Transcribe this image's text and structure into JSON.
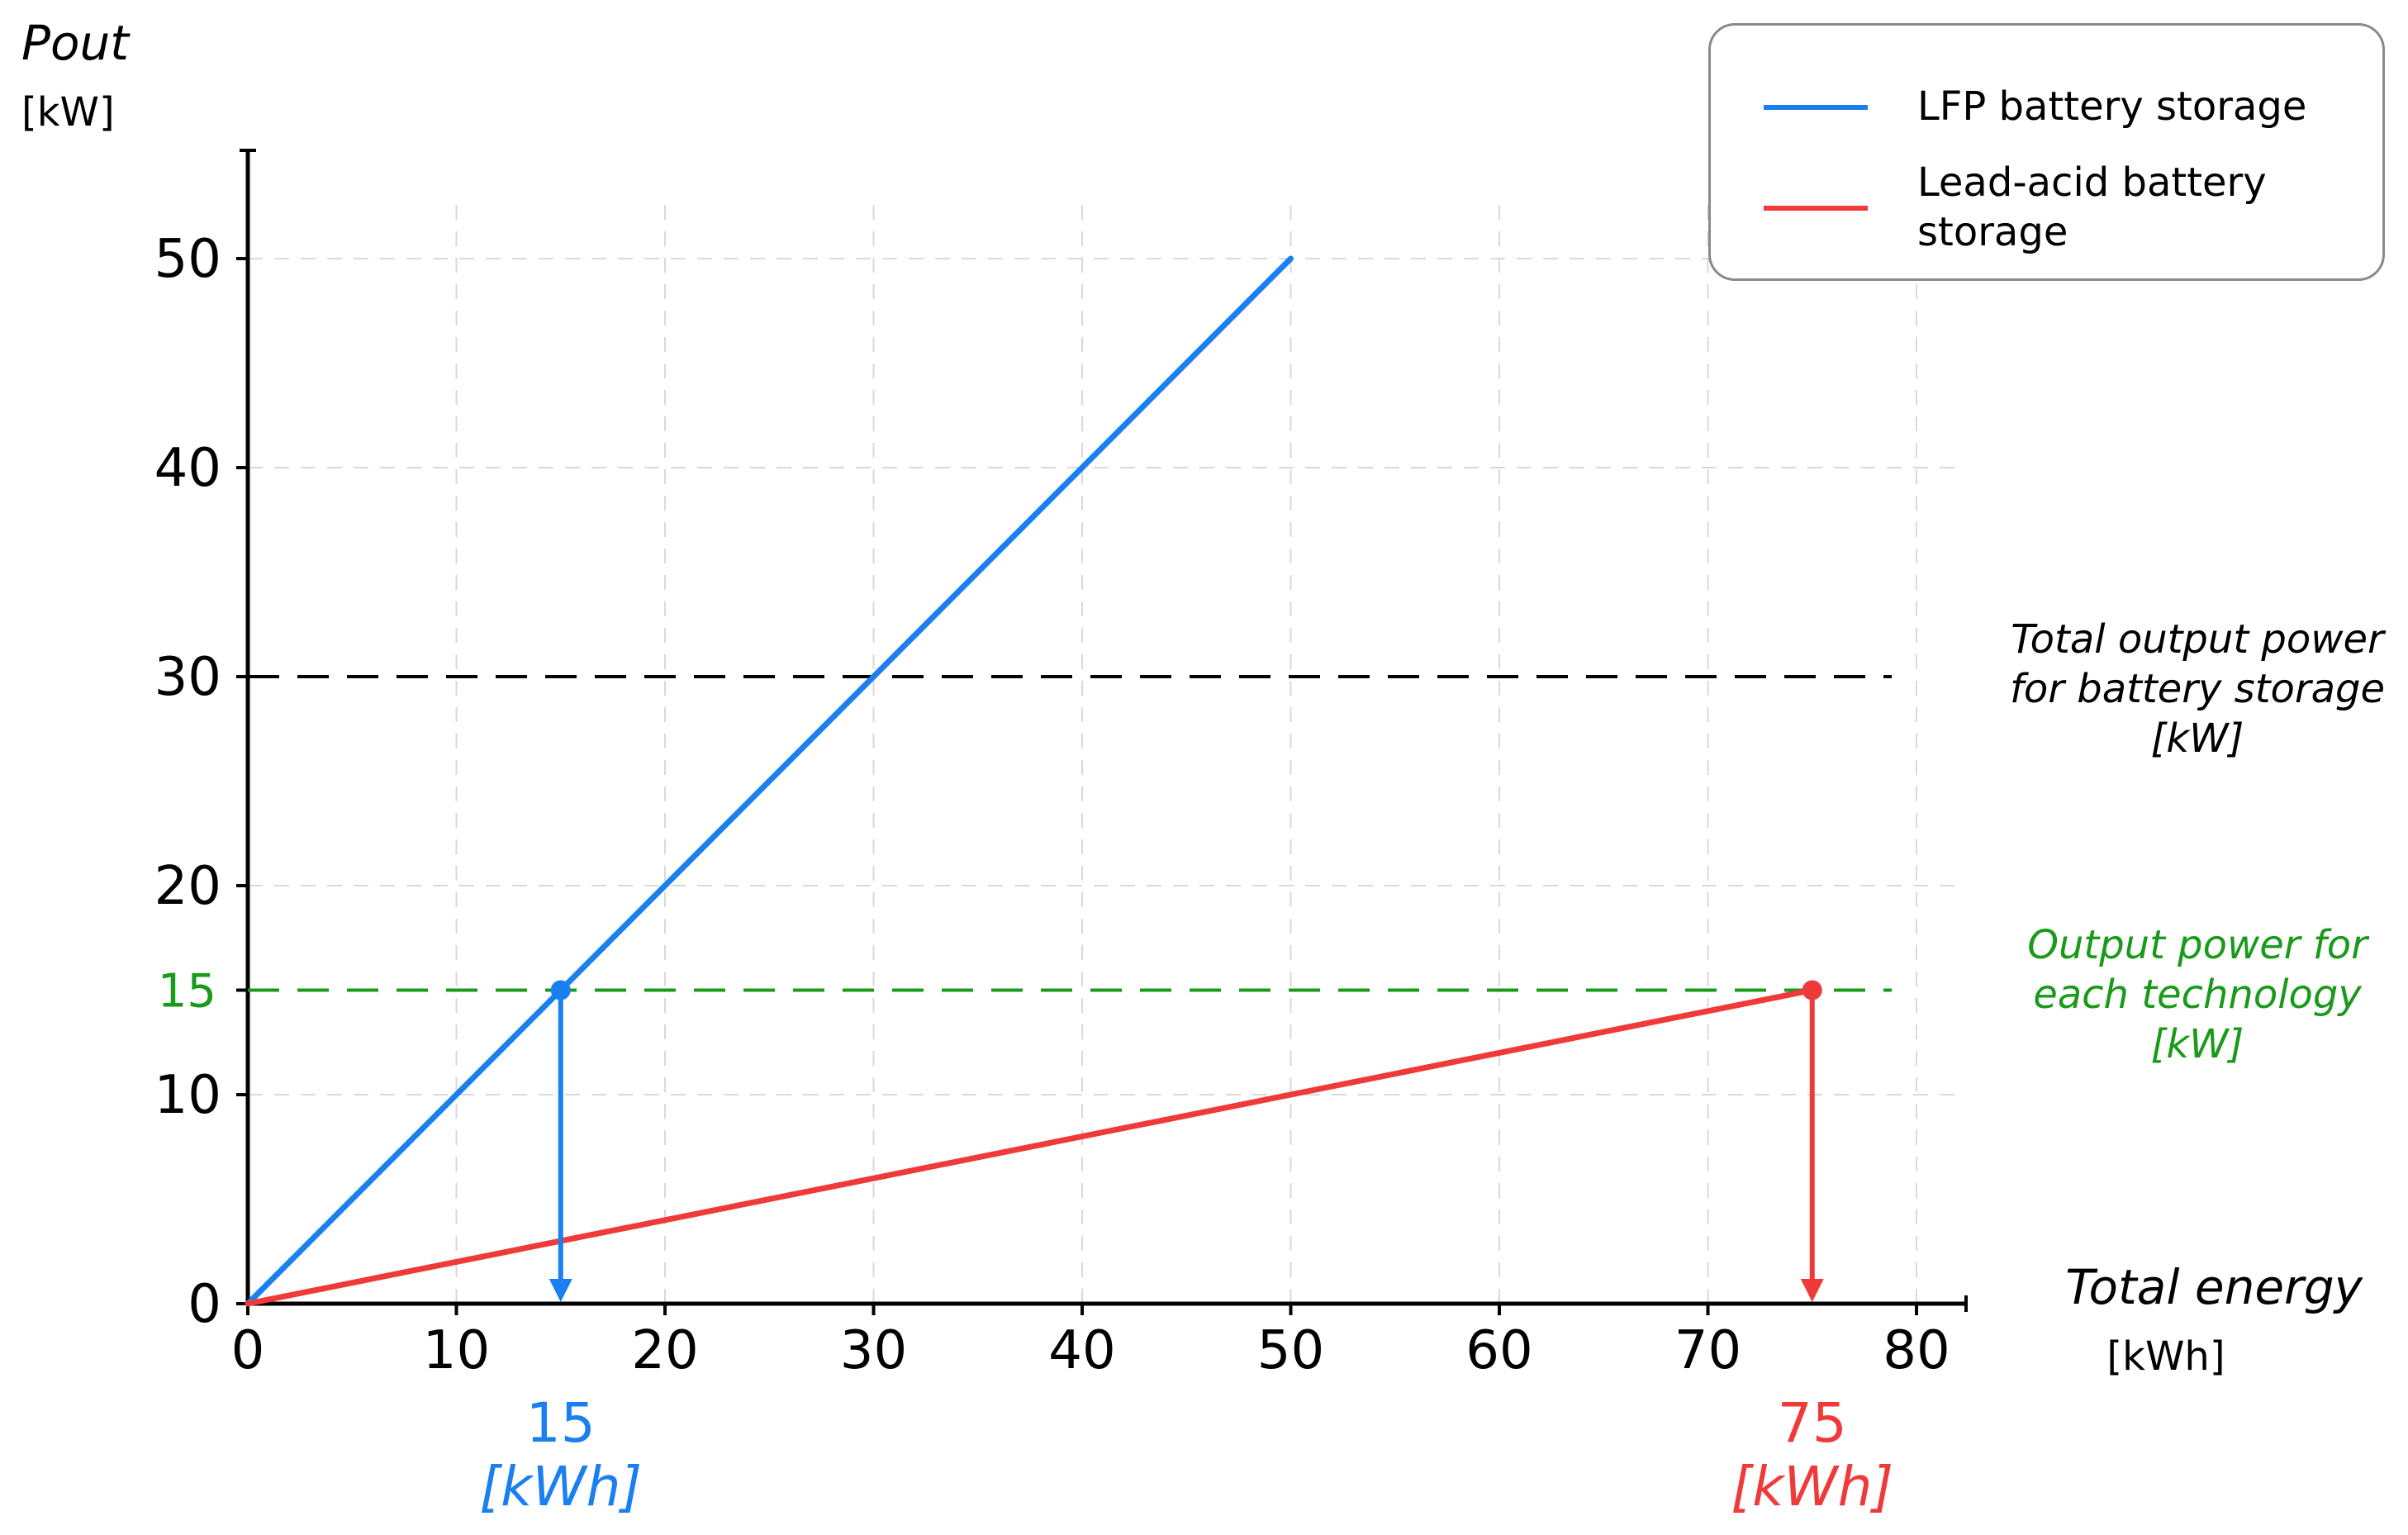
{
  "chart_data": {
    "type": "line",
    "title": "",
    "ylabel": "Pout",
    "yunit": "[kW]",
    "xlabel": "Total energy",
    "xunit": "[kWh]",
    "xlim": [
      0,
      82
    ],
    "ylim": [
      0,
      55
    ],
    "grid": true,
    "legend_position": "top-right",
    "x_ticks": [
      "0",
      "10",
      "20",
      "30",
      "40",
      "50",
      "60",
      "70",
      "80"
    ],
    "y_ticks": [
      "0",
      "10",
      "15",
      "20",
      "30",
      "40",
      "50"
    ],
    "series": [
      {
        "name": "LFP battery storage",
        "color": "#1a7ff0",
        "x": [
          0,
          50
        ],
        "y": [
          0,
          50
        ]
      },
      {
        "name": "Lead-acid battery storage",
        "color": "#f03a3a",
        "x": [
          0,
          75
        ],
        "y": [
          0,
          15
        ]
      }
    ],
    "reference_lines": [
      {
        "y": 30,
        "color": "#000000",
        "label_lines": [
          "Total output power",
          "for battery storage",
          "[kW]"
        ]
      },
      {
        "y": 15,
        "color": "#1a9a1a",
        "label_lines": [
          "Output power for",
          "each technology",
          "[kW]"
        ]
      }
    ],
    "markers": [
      {
        "x": 15,
        "y": 15,
        "color": "#1a7ff0",
        "value_label": "15",
        "unit_label": "[kWh]"
      },
      {
        "x": 75,
        "y": 15,
        "color": "#f03a3a",
        "value_label": "75",
        "unit_label": "[kWh]"
      }
    ]
  }
}
